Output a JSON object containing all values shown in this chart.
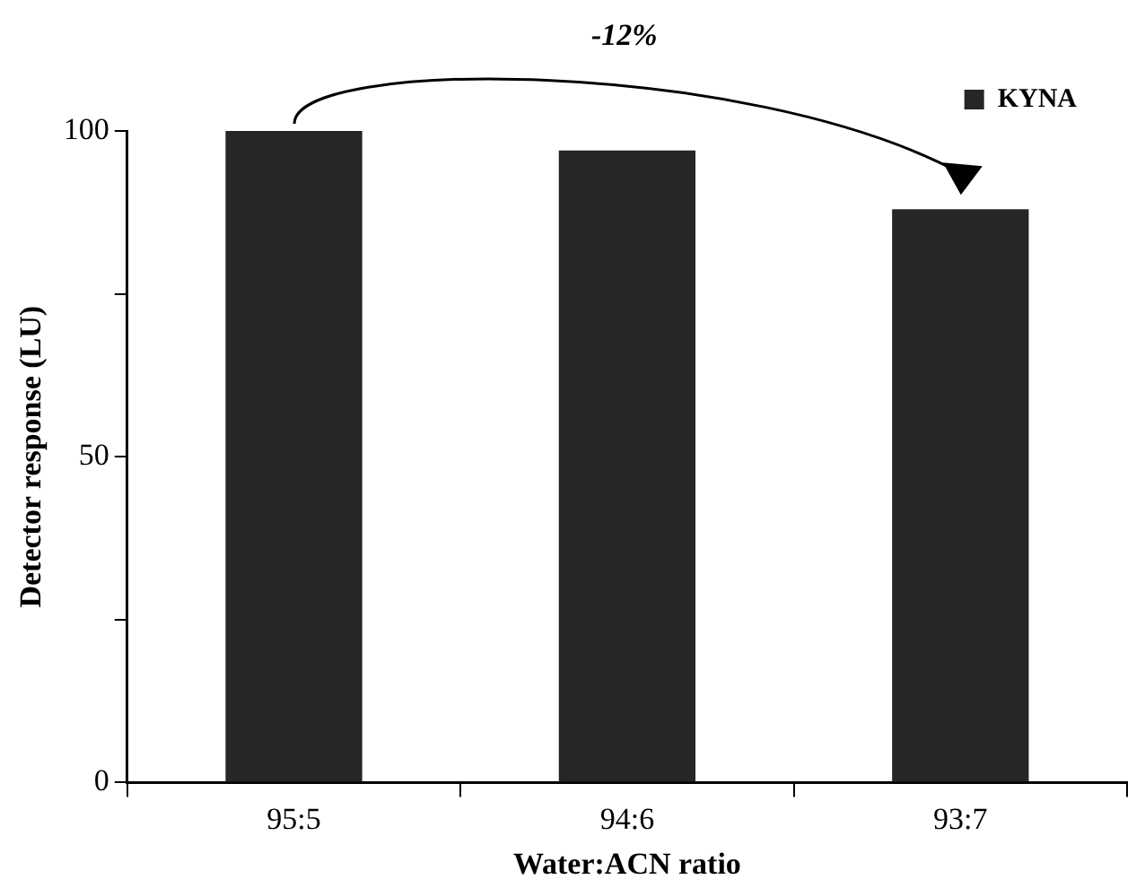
{
  "chart_data": {
    "type": "bar",
    "xlabel": "Water:ACN ratio",
    "ylabel": "Detector response (LU)",
    "categories": [
      "95:5",
      "94:6",
      "93:7"
    ],
    "series": [
      {
        "name": "KYNA",
        "color": "#262626",
        "values": [
          100,
          97,
          88
        ]
      }
    ],
    "ylim": [
      0,
      100
    ],
    "yticks": [
      0,
      {
        "value": 25,
        "label": null
      },
      50,
      {
        "value": 75,
        "label": null
      },
      100
    ],
    "grid": false,
    "legend": "top right",
    "annotations": [
      "-12%"
    ]
  }
}
